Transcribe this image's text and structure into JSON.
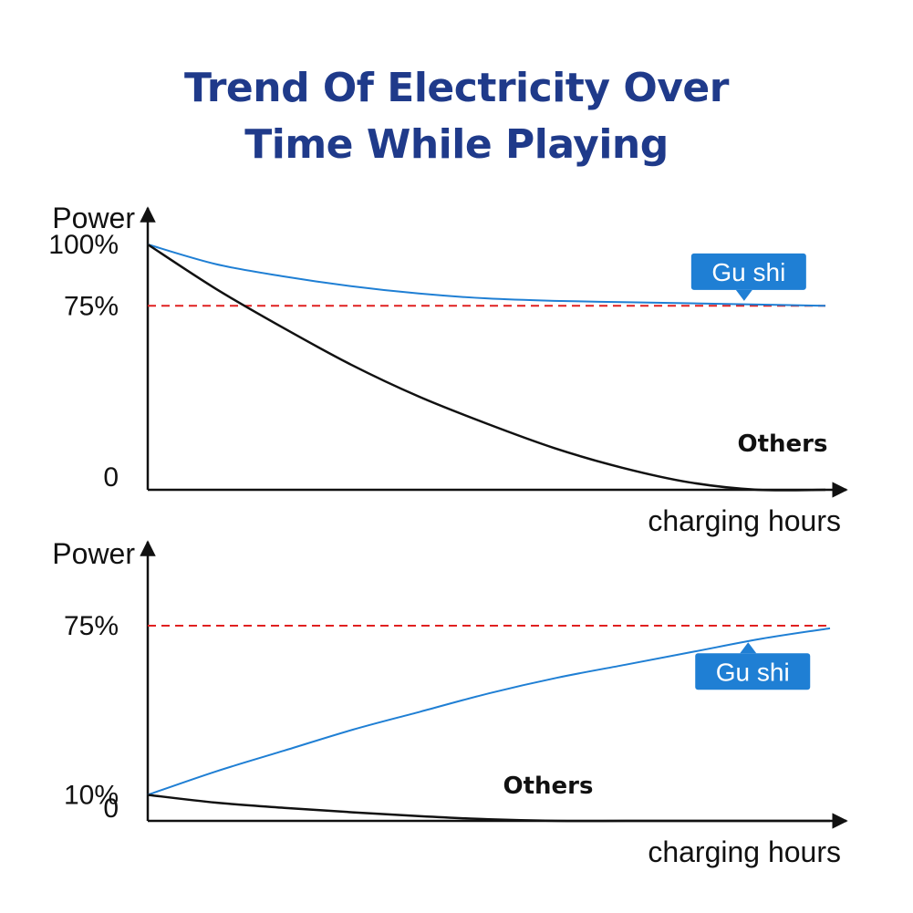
{
  "title": {
    "line1": "Trend Of Electricity Over",
    "line2": "Time While Playing"
  },
  "colors": {
    "title": "#1f3a8a",
    "gushi_line": "#1f7fd4",
    "gushi_badge": "#1f7fd4",
    "others_line": "#111111",
    "reference": "#e02020"
  },
  "chart_data": [
    {
      "type": "line",
      "title": "",
      "xlabel": "charging hours",
      "ylabel": "Power",
      "ylim": [
        0,
        100
      ],
      "yticks": [
        {
          "value": 0,
          "label": "0"
        },
        {
          "value": 75,
          "label": "75%"
        },
        {
          "value": 100,
          "label": "100%"
        }
      ],
      "reference_line": {
        "value": 75,
        "style": "dashed"
      },
      "x": [
        0,
        0.1,
        0.2,
        0.3,
        0.4,
        0.5,
        0.6,
        0.7,
        0.8,
        0.9,
        1.0
      ],
      "series": [
        {
          "name": "Gu shi",
          "values": [
            100,
            92,
            87,
            83,
            80,
            78,
            77,
            76.5,
            76,
            75.5,
            75
          ]
        },
        {
          "name": "Others",
          "values": [
            100,
            82,
            66,
            51,
            38,
            27,
            17,
            9,
            3,
            0,
            0
          ]
        }
      ],
      "grid": false
    },
    {
      "type": "line",
      "title": "",
      "xlabel": "charging hours",
      "ylabel": "Power",
      "ylim": [
        0,
        75
      ],
      "yticks": [
        {
          "value": 0,
          "label": "0"
        },
        {
          "value": 10,
          "label": "10%"
        },
        {
          "value": 75,
          "label": "75%"
        }
      ],
      "reference_line": {
        "value": 75,
        "style": "dashed"
      },
      "x": [
        0,
        0.1,
        0.2,
        0.3,
        0.4,
        0.5,
        0.6,
        0.7,
        0.8,
        0.9,
        1.0
      ],
      "series": [
        {
          "name": "Gu shi",
          "values": [
            10,
            19,
            27,
            35,
            42,
            49,
            55,
            60,
            65,
            70,
            74
          ]
        },
        {
          "name": "Others",
          "values": [
            10,
            7,
            5,
            3.3,
            1.8,
            0.6,
            0,
            0,
            0,
            0,
            0
          ]
        }
      ],
      "grid": false
    }
  ]
}
